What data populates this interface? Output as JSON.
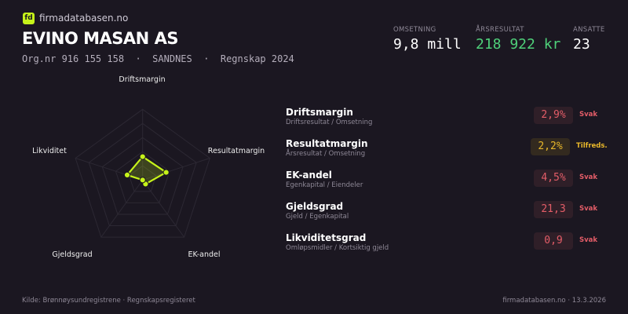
{
  "header": {
    "logo_text": "fd",
    "site": "firmadatabasen.no",
    "company": "EVINO MASAN AS",
    "subtitle": "Org.nr 916 155 158  ·  SANDNES  ·  Regnskap 2024"
  },
  "stats": [
    {
      "label": "OMSETNING",
      "value": "9,8 mill",
      "color": "#ffffff"
    },
    {
      "label": "ÅRSRESULTAT",
      "value": "218 922 kr",
      "color": "#4fd17a"
    },
    {
      "label": "ANSATTE",
      "value": "23",
      "color": "#ffffff"
    }
  ],
  "radar": {
    "axes": [
      "Driftsmargin",
      "Resultatmargin",
      "EK-andel",
      "Gjeldsgrad",
      "Likviditet"
    ],
    "values": [
      0.33,
      0.35,
      0.07,
      0.0,
      0.23
    ],
    "rings": 5,
    "accent": "#c6f31a"
  },
  "metrics": [
    {
      "title": "Driftsmargin",
      "formula": "Driftsresultat / Omsetning",
      "value": "2,9%",
      "status": "Svak"
    },
    {
      "title": "Resultatmargin",
      "formula": "Årsresultat / Omsetning",
      "value": "2,2%",
      "status": "Tilfreds."
    },
    {
      "title": "EK-andel",
      "formula": "Egenkapital / Eiendeler",
      "value": "4,5%",
      "status": "Svak"
    },
    {
      "title": "Gjeldsgrad",
      "formula": "Gjeld / Egenkapital",
      "value": "21,3",
      "status": "Svak"
    },
    {
      "title": "Likviditetsgrad",
      "formula": "Omløpsmidler / Kortsiktig gjeld",
      "value": "0,9",
      "status": "Svak"
    }
  ],
  "footer": {
    "source": "Kilde: Brønnøysundregistrene · Regnskapsregisteret",
    "right": "firmadatabasen.no · 13.3.2026"
  }
}
